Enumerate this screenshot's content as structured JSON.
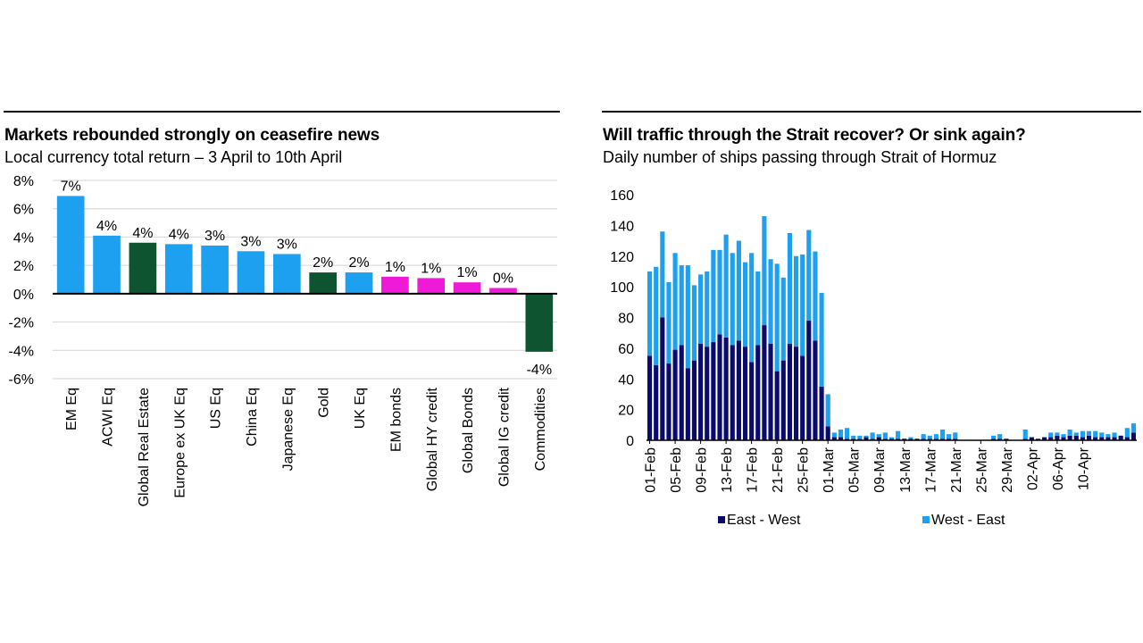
{
  "chart_data": [
    {
      "type": "bar",
      "title": "Markets rebounded strongly on ceasefire news",
      "subtitle": "Local currency total return – 3 April to 10th April",
      "xlabel": "",
      "ylabel": "",
      "ylim": [
        -6,
        8
      ],
      "yticks": [
        "8%",
        "6%",
        "4%",
        "2%",
        "0%",
        "-2%",
        "-4%",
        "-6%"
      ],
      "ytick_values": [
        8,
        6,
        4,
        2,
        0,
        -2,
        -4,
        -6
      ],
      "gridlines": true,
      "colors": {
        "equity": "#1ea0f0",
        "real_asset": "#0e5430",
        "bonds": "#ee1ad8"
      },
      "categories": [
        "EM Eq",
        "ACWI Eq",
        "Global Real Estate",
        "Europe ex UK Eq",
        "US Eq",
        "China Eq",
        "Japanese Eq",
        "Gold",
        "UK Eq",
        "EM bonds",
        "Global HY credit",
        "Global Bonds",
        "Global IG credit",
        "Commodities"
      ],
      "values": [
        6.9,
        4.1,
        3.6,
        3.5,
        3.4,
        3.0,
        2.8,
        1.5,
        1.5,
        1.2,
        1.1,
        0.8,
        0.4,
        -4.1
      ],
      "labels": [
        "7%",
        "4%",
        "4%",
        "4%",
        "3%",
        "3%",
        "3%",
        "2%",
        "2%",
        "1%",
        "1%",
        "1%",
        "0%",
        "-4%"
      ],
      "bar_color_keys": [
        "equity",
        "equity",
        "real_asset",
        "equity",
        "equity",
        "equity",
        "equity",
        "real_asset",
        "equity",
        "bonds",
        "bonds",
        "bonds",
        "bonds",
        "real_asset"
      ]
    },
    {
      "type": "bar",
      "stacked": true,
      "title": "Will traffic through the Strait recover? Or sink again?",
      "subtitle": "Daily number of ships passing through Strait of Hormuz",
      "xlabel": "",
      "ylabel": "",
      "ylim": [
        0,
        160
      ],
      "yticks": [
        "160",
        "140",
        "120",
        "100",
        "80",
        "60",
        "40",
        "20",
        "0"
      ],
      "ytick_values": [
        160,
        140,
        120,
        100,
        80,
        60,
        40,
        20,
        0
      ],
      "gridlines": false,
      "legend_position": "bottom",
      "start_day": 1,
      "x_tick_labels": [
        "01-Feb",
        "05-Feb",
        "09-Feb",
        "13-Feb",
        "17-Feb",
        "21-Feb",
        "25-Feb",
        "01-Mar",
        "05-Mar",
        "09-Mar",
        "13-Mar",
        "17-Mar",
        "21-Mar",
        "25-Mar",
        "29-Mar",
        "02-Apr",
        "06-Apr",
        "10-Apr"
      ],
      "x_tick_every_days": 4,
      "series": [
        {
          "name": "East - West",
          "color": "#0b0b6e",
          "values": [
            55,
            49,
            80,
            50,
            59,
            62,
            47,
            52,
            63,
            61,
            64,
            69,
            67,
            62,
            65,
            61,
            51,
            62,
            75,
            63,
            45,
            52,
            63,
            61,
            55,
            78,
            65,
            35,
            9,
            2,
            2,
            1,
            1,
            1,
            2,
            1,
            2,
            1,
            1,
            1,
            1,
            1,
            1,
            1,
            1,
            1,
            1,
            1,
            1,
            0,
            0,
            0,
            0,
            0,
            1,
            1,
            1,
            0,
            0,
            1,
            2,
            1,
            2,
            2,
            3,
            2,
            3,
            3,
            2,
            3,
            2,
            2,
            2,
            2,
            3,
            2,
            5
          ]
        },
        {
          "name": "West - East",
          "color": "#1ea0f0",
          "values": [
            55,
            64,
            56,
            53,
            63,
            52,
            67,
            49,
            45,
            49,
            60,
            55,
            67,
            60,
            65,
            55,
            71,
            48,
            71,
            55,
            70,
            54,
            72,
            59,
            66,
            59,
            58,
            61,
            21,
            3,
            5,
            7,
            2,
            2,
            1,
            4,
            2,
            4,
            1,
            5,
            0,
            1,
            0,
            3,
            2,
            3,
            6,
            3,
            4,
            0,
            0,
            0,
            0,
            0,
            2,
            3,
            0,
            0,
            0,
            6,
            0,
            0,
            0,
            3,
            2,
            2,
            4,
            2,
            4,
            3,
            4,
            3,
            2,
            3,
            0,
            6,
            6
          ]
        }
      ]
    }
  ]
}
